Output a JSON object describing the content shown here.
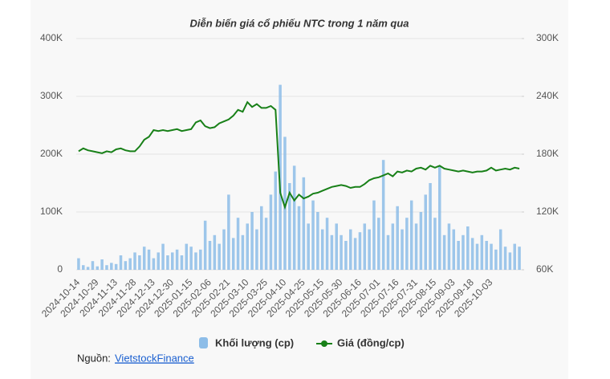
{
  "chart_data": {
    "type": "bar-line",
    "title": "Diễn biến giá cổ phiếu NTC trong 1 năm qua",
    "categories": [
      "2024-10-14",
      null,
      null,
      null,
      "2024-10-29",
      null,
      null,
      null,
      "2024-11-13",
      null,
      null,
      null,
      "2024-11-28",
      null,
      null,
      null,
      "2024-12-13",
      null,
      null,
      null,
      "2024-12-30",
      null,
      null,
      null,
      "2025-01-15",
      null,
      null,
      null,
      "2025-02-06",
      null,
      null,
      null,
      "2025-02-21",
      null,
      null,
      null,
      "2025-03-10",
      null,
      null,
      null,
      "2025-03-25",
      null,
      null,
      null,
      "2025-04-10",
      null,
      null,
      null,
      "2025-04-25",
      null,
      null,
      null,
      "2025-05-15",
      null,
      null,
      null,
      "2025-05-30",
      null,
      null,
      null,
      "2025-06-16",
      null,
      null,
      null,
      "2025-07-01",
      null,
      null,
      null,
      "2025-07-16",
      null,
      null,
      null,
      "2025-07-31",
      null,
      null,
      null,
      "2025-08-15",
      null,
      null,
      null,
      "2025-09-03",
      null,
      null,
      null,
      "2025-09-18",
      null,
      null,
      null,
      "2025-10-03",
      null,
      null,
      null,
      null,
      null,
      null
    ],
    "series": [
      {
        "name": "Khối lượng (cp)",
        "color": "#8dbde8",
        "kind": "bar",
        "values": [
          20000,
          8000,
          5000,
          15000,
          6000,
          18000,
          8000,
          12000,
          10000,
          25000,
          15000,
          20000,
          30000,
          25000,
          40000,
          35000,
          20000,
          30000,
          45000,
          25000,
          30000,
          35000,
          25000,
          45000,
          40000,
          30000,
          35000,
          85000,
          50000,
          60000,
          45000,
          70000,
          130000,
          55000,
          90000,
          60000,
          80000,
          100000,
          70000,
          110000,
          90000,
          130000,
          170000,
          320000,
          230000,
          150000,
          180000,
          110000,
          160000,
          80000,
          120000,
          100000,
          70000,
          90000,
          60000,
          80000,
          60000,
          50000,
          70000,
          55000,
          65000,
          80000,
          70000,
          120000,
          90000,
          190000,
          60000,
          80000,
          110000,
          70000,
          90000,
          120000,
          80000,
          100000,
          130000,
          150000,
          90000,
          180000,
          60000,
          80000,
          70000,
          50000,
          60000,
          75000,
          55000,
          45000,
          60000,
          50000,
          45000,
          35000,
          70000,
          40000,
          30000,
          45000,
          40000
        ]
      },
      {
        "name": "Giá (đồng/cp)",
        "color": "#188018",
        "kind": "line",
        "axis": "y2",
        "values": [
          183000,
          186000,
          184000,
          183000,
          182000,
          181000,
          183000,
          182000,
          185000,
          186000,
          184000,
          183000,
          183000,
          188000,
          195000,
          198000,
          205000,
          204000,
          205000,
          204000,
          205000,
          206000,
          204000,
          205000,
          206000,
          213000,
          215000,
          209000,
          207000,
          208000,
          212000,
          214000,
          216000,
          220000,
          226000,
          224000,
          234000,
          229000,
          232000,
          228000,
          228000,
          230000,
          226000,
          140000,
          125000,
          140000,
          132000,
          138000,
          134000,
          136000,
          139000,
          140000,
          142000,
          144000,
          146000,
          147000,
          148000,
          147000,
          145000,
          146000,
          146000,
          149000,
          153000,
          155000,
          156000,
          158000,
          160000,
          157000,
          162000,
          161000,
          163000,
          162000,
          165000,
          166000,
          164000,
          168000,
          166000,
          168000,
          165000,
          164000,
          163000,
          162000,
          163000,
          162000,
          161000,
          162000,
          162000,
          163000,
          166000,
          163000,
          164000,
          165000,
          164000,
          166000,
          165000
        ]
      }
    ],
    "ylim": [
      0,
      400000
    ],
    "yticks": [
      0,
      {
        "value": 100000,
        "label": "100K"
      },
      {
        "value": 200000,
        "label": "200K"
      },
      {
        "value": 300000,
        "label": "300K"
      },
      {
        "value": 400000,
        "label": "400K"
      }
    ],
    "y2lim": [
      60000,
      300000
    ],
    "y2ticks": [
      {
        "value": 60000,
        "label": "60K"
      },
      {
        "value": 120000,
        "label": "120K"
      },
      {
        "value": 180000,
        "label": "180K"
      },
      {
        "value": 240000,
        "label": "240K"
      },
      {
        "value": 300000,
        "label": "300K"
      }
    ],
    "grid": true
  },
  "source": {
    "prefix": "Nguồn:",
    "link": "VietstockFinance"
  }
}
